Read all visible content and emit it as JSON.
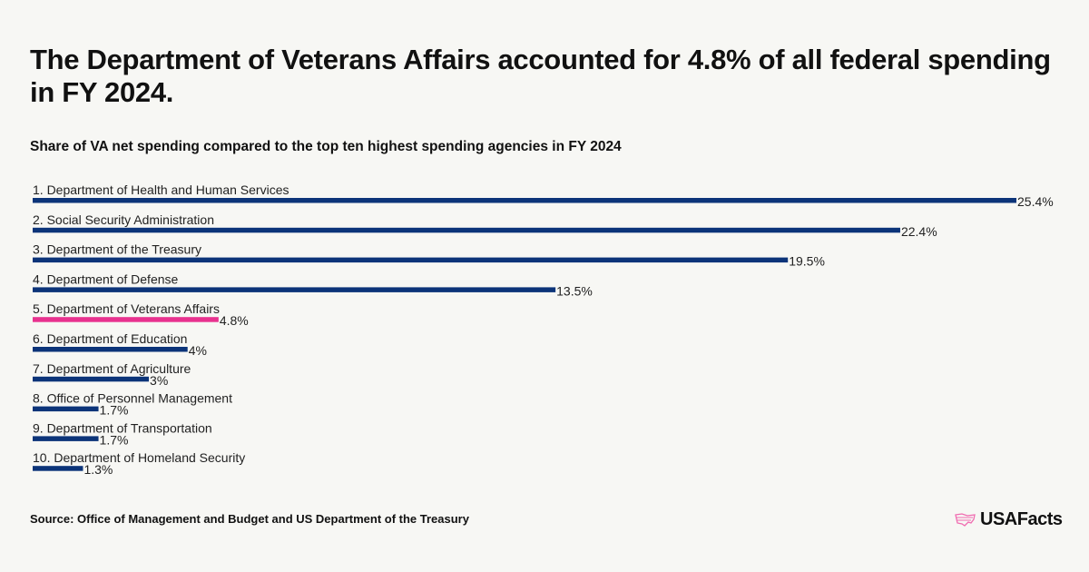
{
  "title": "The Department of Veterans Affairs accounted for 4.8% of all federal spending in FY 2024.",
  "subtitle": "Share of VA net spending compared to the top ten highest spending agencies in FY 2024",
  "source": "Source: Office of Management and Budget and US Department of the Treasury",
  "logo": "USAFacts",
  "colors": {
    "bar": "#0c3479",
    "highlight": "#e8328f",
    "background": "#f7f7f4"
  },
  "chart_data": {
    "type": "bar",
    "orientation": "horizontal",
    "categories": [
      "1. Department of Health and Human Services",
      "2. Social Security Administration",
      "3. Department of the Treasury",
      "4. Department of Defense",
      "5. Department of Veterans Affairs",
      "6. Department of Education",
      "7. Department of Agriculture",
      "8. Office of Personnel Management",
      "9. Department of Transportation",
      "10. Department of Homeland Security"
    ],
    "values": [
      25.4,
      22.4,
      19.5,
      13.5,
      4.8,
      4,
      3,
      1.7,
      1.7,
      1.3
    ],
    "data_labels": [
      "25.4%",
      "22.4%",
      "19.5%",
      "13.5%",
      "4.8%",
      "4%",
      "3%",
      "1.7%",
      "1.7%",
      "1.3%"
    ],
    "highlight_index": 4,
    "xlim": [
      0,
      25.4
    ],
    "grid": false
  }
}
